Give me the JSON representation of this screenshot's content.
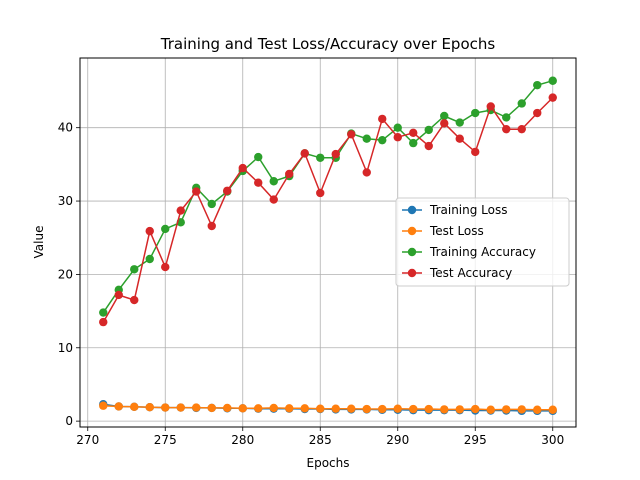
{
  "chart_data": {
    "type": "line",
    "title": "Training and Test Loss/Accuracy over Epochs",
    "xlabel": "Epochs",
    "ylabel": "Value",
    "xlim": [
      269.5,
      301.5
    ],
    "ylim": [
      -0.8,
      49.5
    ],
    "xticks": [
      270,
      275,
      280,
      285,
      290,
      295,
      300
    ],
    "yticks": [
      0,
      10,
      20,
      30,
      40
    ],
    "grid": true,
    "legend_position": "center-right",
    "x": [
      271,
      272,
      273,
      274,
      275,
      276,
      277,
      278,
      279,
      280,
      281,
      282,
      283,
      284,
      285,
      286,
      287,
      288,
      289,
      290,
      291,
      292,
      293,
      294,
      295,
      296,
      297,
      298,
      299,
      300
    ],
    "series": [
      {
        "name": "Training Loss",
        "color": "#1f77b4",
        "values": [
          2.3,
          2.0,
          1.95,
          1.9,
          1.85,
          1.85,
          1.8,
          1.8,
          1.75,
          1.75,
          1.7,
          1.7,
          1.7,
          1.65,
          1.65,
          1.6,
          1.6,
          1.6,
          1.55,
          1.55,
          1.5,
          1.5,
          1.5,
          1.5,
          1.45,
          1.45,
          1.45,
          1.4,
          1.4,
          1.4
        ]
      },
      {
        "name": "Test Loss",
        "color": "#ff7f0e",
        "values": [
          2.1,
          2.0,
          1.95,
          1.9,
          1.85,
          1.85,
          1.85,
          1.8,
          1.8,
          1.75,
          1.75,
          1.8,
          1.75,
          1.75,
          1.7,
          1.7,
          1.7,
          1.65,
          1.65,
          1.7,
          1.65,
          1.65,
          1.6,
          1.6,
          1.65,
          1.55,
          1.6,
          1.6,
          1.55,
          1.55
        ]
      },
      {
        "name": "Training Accuracy",
        "color": "#2ca02c",
        "values": [
          14.8,
          17.9,
          20.7,
          22.1,
          26.2,
          27.1,
          31.8,
          29.6,
          31.3,
          34.1,
          36.0,
          32.7,
          33.4,
          36.5,
          35.9,
          35.9,
          39.2,
          38.5,
          38.3,
          40.0,
          37.9,
          39.7,
          41.6,
          40.7,
          42.0,
          42.4,
          41.4,
          43.3,
          45.8,
          46.4
        ]
      },
      {
        "name": "Test Accuracy",
        "color": "#d62728",
        "values": [
          13.5,
          17.2,
          16.5,
          25.9,
          21.0,
          28.7,
          31.3,
          26.6,
          31.4,
          34.5,
          32.5,
          30.2,
          33.7,
          36.5,
          31.1,
          36.4,
          39.1,
          33.9,
          41.2,
          38.7,
          39.3,
          37.5,
          40.6,
          38.5,
          36.7,
          42.9,
          39.8,
          39.8,
          42.0,
          44.1
        ]
      }
    ]
  }
}
